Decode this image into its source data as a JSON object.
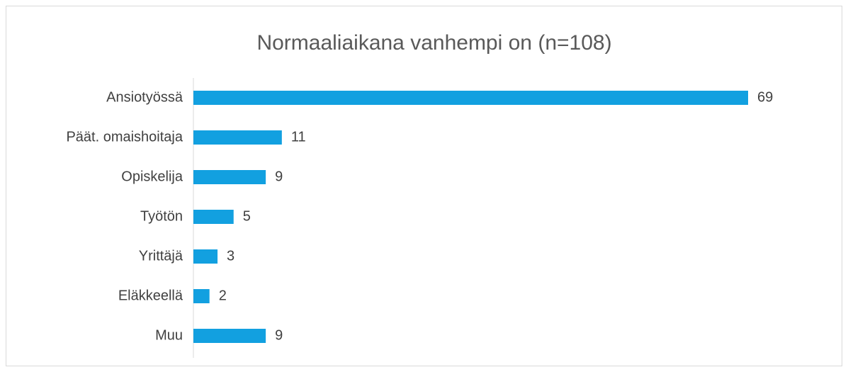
{
  "chart_data": {
    "type": "bar",
    "orientation": "horizontal",
    "title": "Normaaliaikana vanhempi on (n=108)",
    "categories": [
      "Ansiotyössä",
      "Päät. omaishoitaja",
      "Opiskelija",
      "Työtön",
      "Yrittäjä",
      "Eläkkeellä",
      "Muu"
    ],
    "values": [
      69,
      11,
      9,
      5,
      3,
      2,
      9
    ],
    "color": "#12a0e0"
  }
}
